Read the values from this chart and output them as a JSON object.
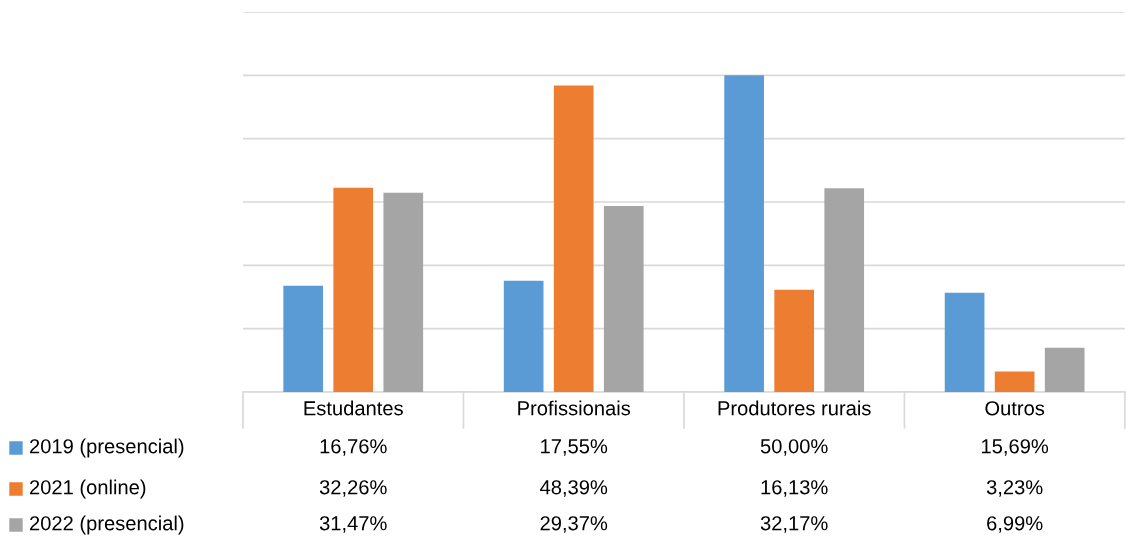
{
  "chart_data": {
    "type": "bar",
    "categories": [
      "Estudantes",
      "Profissionais",
      "Produtores rurais",
      "Outros"
    ],
    "series": [
      {
        "name": "2019 (presencial)",
        "color": "#5b9bd5",
        "values": [
          16.76,
          17.55,
          50.0,
          15.69
        ],
        "value_labels": [
          "16,76%",
          "17,55%",
          "50,00%",
          "15,69%"
        ]
      },
      {
        "name": "2021 (online)",
        "color": "#ed7d31",
        "values": [
          32.26,
          48.39,
          16.13,
          3.23
        ],
        "value_labels": [
          "32,26%",
          "48,39%",
          "16,13%",
          "3,23%"
        ]
      },
      {
        "name": "2022 (presencial)",
        "color": "#a5a5a5",
        "values": [
          31.47,
          29.37,
          32.17,
          6.99
        ],
        "value_labels": [
          "31,47%",
          "29,37%",
          "32,17%",
          "6,99%"
        ]
      }
    ],
    "ylim": [
      0,
      60
    ],
    "yticks": [
      {
        "value": 0,
        "label": null
      },
      {
        "value": 10,
        "label": null
      },
      {
        "value": 20,
        "label": null
      },
      {
        "value": 30,
        "label": null
      },
      {
        "value": 40,
        "label": null
      },
      {
        "value": 50,
        "label": null
      },
      {
        "value": 60,
        "label": null
      }
    ],
    "grid": "y",
    "legend": "bottom",
    "tick_labels": "x"
  }
}
